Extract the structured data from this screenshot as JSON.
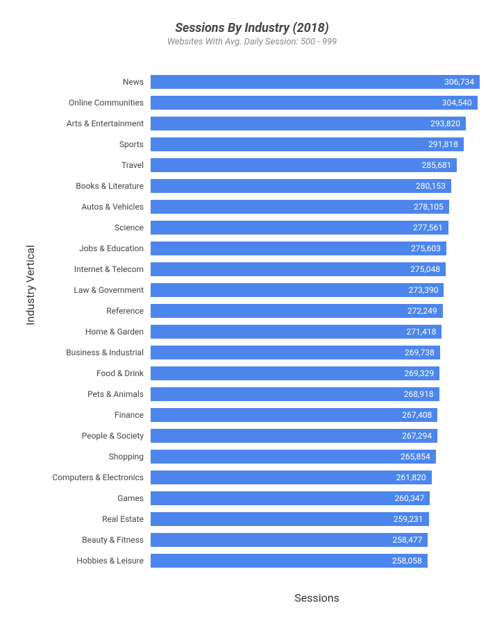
{
  "chart": {
    "type": "bar-horizontal",
    "title": "Sessions By Industry (2018)",
    "subtitle": "Websites With Avg. Daily Session: 500 - 999",
    "title_fontsize": 18,
    "subtitle_fontsize": 13,
    "title_color": "#444444",
    "subtitle_color": "#888888",
    "background_color": "#ffffff",
    "bar_color": "#4c86ec",
    "bar_label_color": "#ffffff",
    "category_label_color": "#444444",
    "category_label_fontsize": 12,
    "value_label_fontsize": 12,
    "axis_title_fontsize": 16,
    "axis_title_color": "#333333",
    "x_axis_title": "Sessions",
    "y_axis_title": "Industry Vertical",
    "xlim_max": 310000,
    "bars": [
      {
        "label": "News",
        "value": 306734,
        "value_text": "306,734"
      },
      {
        "label": "Online Communities",
        "value": 304540,
        "value_text": "304,540"
      },
      {
        "label": "Arts & Entertainment",
        "value": 293820,
        "value_text": "293,820"
      },
      {
        "label": "Sports",
        "value": 291818,
        "value_text": "291,818"
      },
      {
        "label": "Travel",
        "value": 285681,
        "value_text": "285,681"
      },
      {
        "label": "Books & Literature",
        "value": 280153,
        "value_text": "280,153"
      },
      {
        "label": "Autos & Vehicles",
        "value": 278105,
        "value_text": "278,105"
      },
      {
        "label": "Science",
        "value": 277561,
        "value_text": "277,561"
      },
      {
        "label": "Jobs & Education",
        "value": 275603,
        "value_text": "275,603"
      },
      {
        "label": "Internet & Telecom",
        "value": 275048,
        "value_text": "275,048"
      },
      {
        "label": "Law & Government",
        "value": 273390,
        "value_text": "273,390"
      },
      {
        "label": "Reference",
        "value": 272249,
        "value_text": "272,249"
      },
      {
        "label": "Home & Garden",
        "value": 271418,
        "value_text": "271,418"
      },
      {
        "label": "Business & Industrial",
        "value": 269738,
        "value_text": "269,738"
      },
      {
        "label": "Food & Drink",
        "value": 269329,
        "value_text": "269,329"
      },
      {
        "label": "Pets & Animals",
        "value": 268918,
        "value_text": "268,918"
      },
      {
        "label": "Finance",
        "value": 267408,
        "value_text": "267,408"
      },
      {
        "label": "People & Society",
        "value": 267294,
        "value_text": "267,294"
      },
      {
        "label": "Shopping",
        "value": 265854,
        "value_text": "265,854"
      },
      {
        "label": "Computers & Electronics",
        "value": 261820,
        "value_text": "261,820"
      },
      {
        "label": "Games",
        "value": 260347,
        "value_text": "260,347"
      },
      {
        "label": "Real Estate",
        "value": 259231,
        "value_text": "259,231"
      },
      {
        "label": "Beauty & Fitness",
        "value": 258477,
        "value_text": "258,477"
      },
      {
        "label": "Hobbies & Leisure",
        "value": 258058,
        "value_text": "258,058"
      }
    ]
  }
}
